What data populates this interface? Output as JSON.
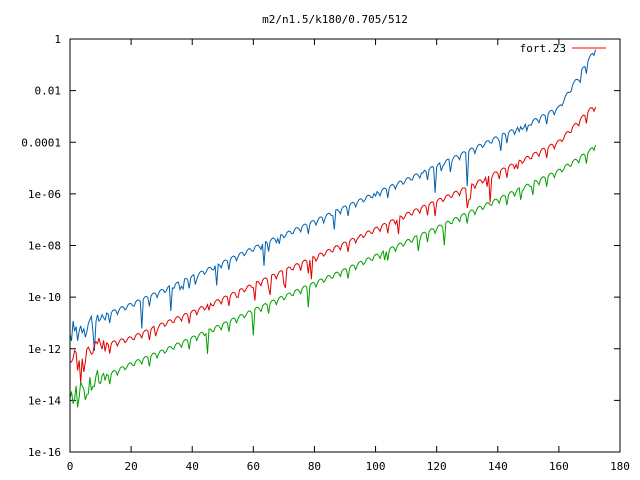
{
  "chart_data": {
    "type": "line",
    "title": "m2/n1.5/k180/0.705/512",
    "xlabel": "",
    "ylabel": "",
    "xlim": [
      0,
      180
    ],
    "ylim": [
      1e-16,
      1
    ],
    "yscale": "log",
    "grid": false,
    "legend_placement": "top-right",
    "x_ticks": [
      0,
      20,
      40,
      60,
      80,
      100,
      120,
      140,
      160,
      180
    ],
    "x_tick_labels": [
      "0",
      "20",
      "40",
      "60",
      "80",
      "100",
      "120",
      "140",
      "160",
      "180"
    ],
    "y_ticks": [
      1e-16,
      1e-14,
      1e-12,
      1e-10,
      1e-08,
      1e-06,
      0.0001,
      0.01,
      1
    ],
    "y_tick_labels": [
      "1e-16",
      "1e-14",
      "1e-12",
      "1e-10",
      "1e-08",
      "1e-06",
      "0.0001",
      "0.01",
      "1"
    ],
    "legend": [
      {
        "label": "fort.23",
        "color": "#ff0000"
      }
    ],
    "series": [
      {
        "color": "#0060ad",
        "x": [
          0,
          10,
          20,
          30,
          40,
          50,
          60,
          70,
          80,
          90,
          100,
          110,
          120,
          130,
          140,
          150,
          160,
          170,
          172
        ],
        "y": [
          5e-12,
          2e-11,
          6e-11,
          2e-10,
          7e-10,
          2.5e-09,
          9e-09,
          3e-08,
          1e-07,
          3.5e-07,
          1.2e-06,
          4e-06,
          1.4e-05,
          5e-05,
          0.00018,
          0.0006,
          0.0025,
          0.2,
          0.5
        ]
      },
      {
        "color": "#e00000",
        "x": [
          0,
          10,
          20,
          30,
          40,
          50,
          60,
          70,
          80,
          90,
          100,
          110,
          120,
          130,
          140,
          150,
          160,
          170,
          172
        ],
        "y": [
          4e-13,
          1.5e-12,
          3e-12,
          1e-11,
          3e-11,
          1e-10,
          3.5e-10,
          1.2e-09,
          4e-09,
          1.4e-08,
          5e-08,
          1.8e-07,
          6e-07,
          2e-06,
          8e-06,
          3e-05,
          0.00012,
          0.002,
          0.003
        ]
      },
      {
        "color": "#00a000",
        "x": [
          0,
          10,
          20,
          30,
          40,
          50,
          60,
          70,
          80,
          90,
          100,
          110,
          120,
          130,
          140,
          150,
          160,
          170,
          172
        ],
        "y": [
          1.5e-14,
          8e-14,
          3e-13,
          9e-13,
          3e-12,
          1e-11,
          3.5e-11,
          1.2e-10,
          4e-10,
          1.3e-09,
          4.5e-09,
          1.6e-08,
          5.5e-08,
          2e-07,
          7e-07,
          2.5e-06,
          9e-06,
          5e-05,
          0.0001
        ]
      }
    ]
  }
}
